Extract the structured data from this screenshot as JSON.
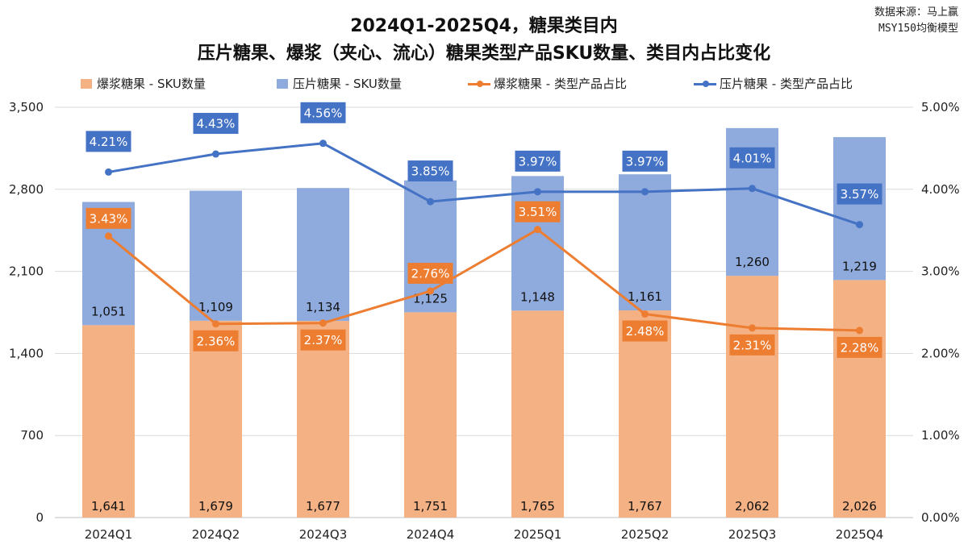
{
  "title": {
    "line1": "2024Q1-2025Q4，糖果类目内",
    "line2": "压片糖果、爆浆（夹心、流心）糖果类型产品SKU数量、类目内占比变化"
  },
  "source": {
    "line1": "数据来源：马上赢",
    "line2": "MSY150均衡模型"
  },
  "colors": {
    "bar_baojiang": "#F4B183",
    "bar_yapian": "#8FAADC",
    "line_baojiang": "#ED7D31",
    "line_yapian": "#4472C4",
    "label_baojiang_bg": "#ED7D31",
    "label_yapian_bg": "#4472C4"
  },
  "chart_data": {
    "type": "bar",
    "stacked": true,
    "categories": [
      "2024Q1",
      "2024Q2",
      "2024Q3",
      "2024Q4",
      "2025Q1",
      "2025Q2",
      "2025Q3",
      "2025Q4"
    ],
    "y_left": {
      "ticks": [
        "0",
        "700",
        "1,400",
        "2,100",
        "2,800",
        "3,500"
      ],
      "ylim": [
        0,
        3500
      ]
    },
    "y_right": {
      "ticks": [
        "0.00%",
        "1.00%",
        "2.00%",
        "3.00%",
        "4.00%",
        "5.00%"
      ],
      "ylim": [
        0,
        5
      ]
    },
    "bar_series": [
      {
        "name": "爆浆糖果 - SKU数量",
        "values": [
          1641,
          1679,
          1677,
          1751,
          1765,
          1767,
          2062,
          2026
        ],
        "labels": [
          "1,641",
          "1,679",
          "1,677",
          "1,751",
          "1,765",
          "1,767",
          "2,062",
          "2,026"
        ]
      },
      {
        "name": "压片糖果 - SKU数量",
        "values": [
          1051,
          1109,
          1134,
          1125,
          1148,
          1161,
          1260,
          1219
        ],
        "labels": [
          "1,051",
          "1,109",
          "1,134",
          "1,125",
          "1,148",
          "1,161",
          "1,260",
          "1,219"
        ]
      }
    ],
    "line_series": [
      {
        "name": "爆浆糖果 - 类型产品占比",
        "values": [
          3.43,
          2.36,
          2.37,
          2.76,
          3.51,
          2.48,
          2.31,
          2.28
        ],
        "labels": [
          "3.43%",
          "2.36%",
          "2.37%",
          "2.76%",
          "3.51%",
          "2.48%",
          "2.31%",
          "2.28%"
        ]
      },
      {
        "name": "压片糖果 - 类型产品占比",
        "values": [
          4.21,
          4.43,
          4.56,
          3.85,
          3.97,
          3.97,
          4.01,
          3.57
        ],
        "labels": [
          "4.21%",
          "4.43%",
          "4.56%",
          "3.85%",
          "3.97%",
          "3.97%",
          "4.01%",
          "3.57%"
        ]
      }
    ],
    "legend_position": "top",
    "grid": true
  }
}
